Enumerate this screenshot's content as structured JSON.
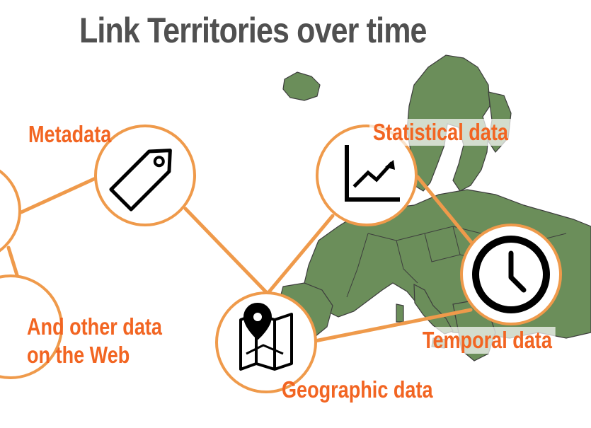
{
  "title": "Link Territories over time",
  "labels": {
    "metadata": "Metadata",
    "statistical": "Statistical data",
    "temporal": "Temporal data",
    "geographic": "Geographic data",
    "other_line1": "And other data",
    "other_line2": "on the Web"
  },
  "colors": {
    "accent_orange": "#f26522",
    "node_border": "#ef9a4b",
    "map_fill": "#6b8e5a",
    "title_gray": "#505050"
  },
  "icons": {
    "metadata": "tag-icon",
    "statistical": "chart-icon",
    "temporal": "clock-icon",
    "geographic": "map-pin-icon"
  }
}
